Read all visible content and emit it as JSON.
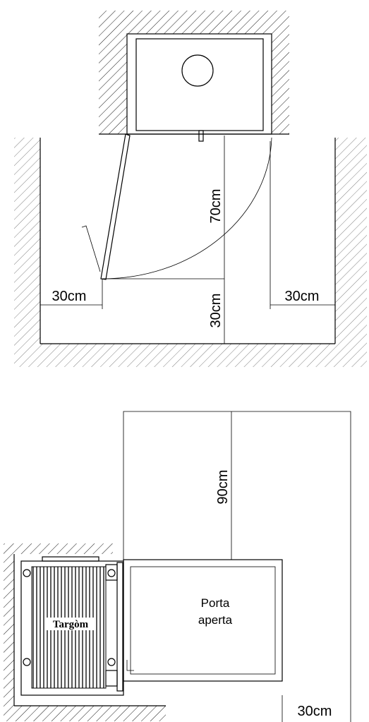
{
  "top_plan": {
    "depth": "70cm",
    "left_clearance": "30cm",
    "front_clearance": "30cm",
    "right_clearance": "30cm"
  },
  "bottom_plan": {
    "front_clearance": "90cm",
    "door_label": [
      "Porta",
      "aperta"
    ],
    "brand": "Targòm",
    "side_clearance": "30cm"
  }
}
